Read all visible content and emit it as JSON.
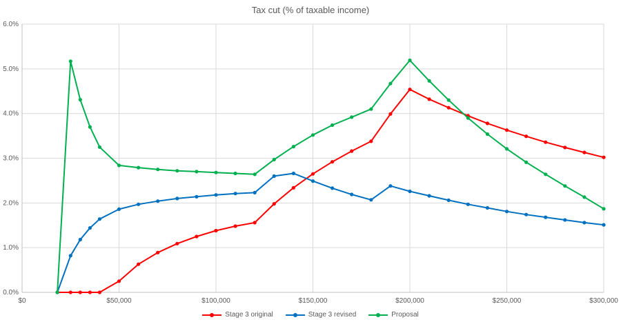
{
  "chart_data": {
    "type": "line",
    "title": "Tax cut (% of taxable income)",
    "xlabel": "",
    "ylabel": "",
    "xlim": [
      0,
      300000
    ],
    "ylim": [
      0,
      6
    ],
    "grid": true,
    "legend_position": "bottom",
    "x": [
      18200,
      25000,
      30000,
      35000,
      40000,
      50000,
      60000,
      70000,
      80000,
      90000,
      100000,
      110000,
      120000,
      130000,
      140000,
      150000,
      160000,
      170000,
      180000,
      190000,
      200000,
      210000,
      220000,
      230000,
      240000,
      250000,
      260000,
      270000,
      280000,
      290000,
      300000
    ],
    "series": [
      {
        "name": "Stage 3 original",
        "color": "#FF0000",
        "values": [
          0,
          0,
          0,
          0,
          0,
          0.25,
          0.63,
          0.89,
          1.09,
          1.25,
          1.38,
          1.48,
          1.56,
          1.98,
          2.34,
          2.65,
          2.92,
          3.16,
          3.38,
          3.99,
          4.54,
          4.32,
          4.13,
          3.95,
          3.78,
          3.63,
          3.49,
          3.36,
          3.24,
          3.13,
          3.02
        ]
      },
      {
        "name": "Stage 3 revised",
        "color": "#0070C0",
        "values": [
          0,
          0.82,
          1.18,
          1.44,
          1.64,
          1.86,
          1.97,
          2.04,
          2.1,
          2.14,
          2.18,
          2.21,
          2.23,
          2.6,
          2.66,
          2.49,
          2.33,
          2.19,
          2.07,
          2.38,
          2.26,
          2.16,
          2.06,
          1.97,
          1.89,
          1.81,
          1.74,
          1.68,
          1.62,
          1.56,
          1.51
        ]
      },
      {
        "name": "Proposal",
        "color": "#00B050",
        "values": [
          0,
          5.17,
          4.31,
          3.7,
          3.25,
          2.84,
          2.79,
          2.75,
          2.72,
          2.7,
          2.68,
          2.66,
          2.64,
          2.97,
          3.26,
          3.52,
          3.74,
          3.92,
          4.1,
          4.67,
          5.19,
          4.73,
          4.3,
          3.9,
          3.54,
          3.21,
          2.91,
          2.64,
          2.38,
          2.13,
          1.87
        ]
      }
    ],
    "x_ticks": [
      {
        "value": 0,
        "label": "$0"
      },
      {
        "value": 50000,
        "label": "$50,000"
      },
      {
        "value": 100000,
        "label": "$100,000"
      },
      {
        "value": 150000,
        "label": "$150,000"
      },
      {
        "value": 200000,
        "label": "$200,000"
      },
      {
        "value": 250000,
        "label": "$250,000"
      },
      {
        "value": 300000,
        "label": "$300,000"
      }
    ],
    "y_ticks": [
      {
        "value": 0,
        "label": "0.0%"
      },
      {
        "value": 1,
        "label": "1.0%"
      },
      {
        "value": 2,
        "label": "2.0%"
      },
      {
        "value": 3,
        "label": "3.0%"
      },
      {
        "value": 4,
        "label": "4.0%"
      },
      {
        "value": 5,
        "label": "5.0%"
      },
      {
        "value": 6,
        "label": "6.0%"
      }
    ],
    "colors": {
      "gridline": "#D9D9D9",
      "axis_line": "#BFBFBF",
      "text": "#595959",
      "background": "#FFFFFF"
    }
  }
}
